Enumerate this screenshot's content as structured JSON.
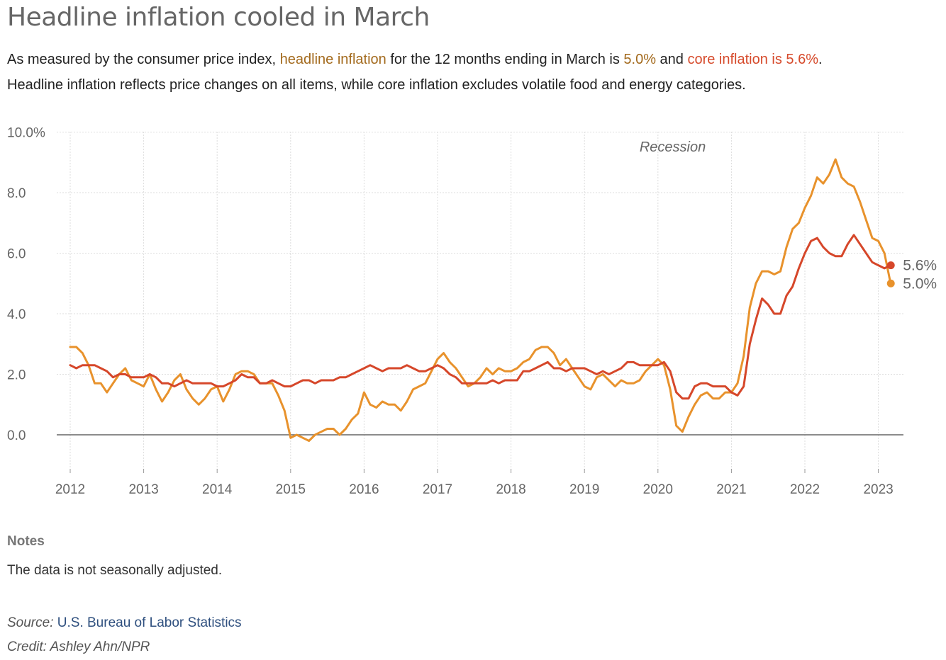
{
  "page": {
    "title": "Headline inflation cooled in March",
    "subtitle": {
      "part1": "As measured by the consumer price index, ",
      "headline_link": "headline inflation",
      "part2": " for the 12 months ending in March is ",
      "headline_value": "5.0%",
      "part3": " and ",
      "core_link": "core inflation is 5.6%",
      "part4": ".",
      "line2": "Headline inflation reflects price changes on all items, while core inflation excludes volatile food and energy categories."
    },
    "notes_heading": "Notes",
    "notes_text": "The data is not seasonally adjusted.",
    "source_label": "Source:",
    "source_link": "U.S. Bureau of Labor Statistics",
    "credit": "Credit: Ashley Ahn/NPR"
  },
  "colors": {
    "headline": "#e8922c",
    "core": "#d6472a",
    "grid": "#dddddd",
    "zero_line": "#666666",
    "axis_text": "#666666"
  },
  "chart_data": {
    "type": "line",
    "title": "Headline inflation cooled in March",
    "xlabel": "",
    "ylabel": "",
    "ylim": [
      -1,
      10
    ],
    "xlim": [
      2012,
      2023.3
    ],
    "y_ticks": [
      {
        "v": 10,
        "label": "10.0%"
      },
      {
        "v": 8,
        "label": "8.0"
      },
      {
        "v": 6,
        "label": "6.0"
      },
      {
        "v": 4,
        "label": "4.0"
      },
      {
        "v": 2,
        "label": "2.0"
      },
      {
        "v": 0,
        "label": "0.0"
      }
    ],
    "x_ticks": [
      "2012",
      "2013",
      "2014",
      "2015",
      "2016",
      "2017",
      "2018",
      "2019",
      "2020",
      "2021",
      "2022",
      "2023"
    ],
    "grid": true,
    "annotation": {
      "text": "Recession",
      "x": 2020.2,
      "y": 9.5
    },
    "series": [
      {
        "name": "headline inflation",
        "color": "#e8922c",
        "end_label": "5.0%",
        "start_year": 2012,
        "values": [
          2.9,
          2.9,
          2.7,
          2.3,
          1.7,
          1.7,
          1.4,
          1.7,
          2.0,
          2.2,
          1.8,
          1.7,
          1.6,
          2.0,
          1.5,
          1.1,
          1.4,
          1.8,
          2.0,
          1.5,
          1.2,
          1.0,
          1.2,
          1.5,
          1.6,
          1.1,
          1.5,
          2.0,
          2.1,
          2.1,
          2.0,
          1.7,
          1.7,
          1.7,
          1.3,
          0.8,
          -0.1,
          0.0,
          -0.1,
          -0.2,
          0.0,
          0.1,
          0.2,
          0.2,
          0.0,
          0.2,
          0.5,
          0.7,
          1.4,
          1.0,
          0.9,
          1.1,
          1.0,
          1.0,
          0.8,
          1.1,
          1.5,
          1.6,
          1.7,
          2.1,
          2.5,
          2.7,
          2.4,
          2.2,
          1.9,
          1.6,
          1.7,
          1.9,
          2.2,
          2.0,
          2.2,
          2.1,
          2.1,
          2.2,
          2.4,
          2.5,
          2.8,
          2.9,
          2.9,
          2.7,
          2.3,
          2.5,
          2.2,
          1.9,
          1.6,
          1.5,
          1.9,
          2.0,
          1.8,
          1.6,
          1.8,
          1.7,
          1.7,
          1.8,
          2.1,
          2.3,
          2.5,
          2.3,
          1.5,
          0.3,
          0.1,
          0.6,
          1.0,
          1.3,
          1.4,
          1.2,
          1.2,
          1.4,
          1.4,
          1.7,
          2.6,
          4.2,
          5.0,
          5.4,
          5.4,
          5.3,
          5.4,
          6.2,
          6.8,
          7.0,
          7.5,
          7.9,
          8.5,
          8.3,
          8.6,
          9.1,
          8.5,
          8.3,
          8.2,
          7.7,
          7.1,
          6.5,
          6.4,
          6.0,
          5.0
        ],
        "last_point": {
          "x": 2023.17,
          "y": 5.0
        }
      },
      {
        "name": "core inflation",
        "color": "#d6472a",
        "end_label": "5.6%",
        "start_year": 2012,
        "values": [
          2.3,
          2.2,
          2.3,
          2.3,
          2.3,
          2.2,
          2.1,
          1.9,
          2.0,
          2.0,
          1.9,
          1.9,
          1.9,
          2.0,
          1.9,
          1.7,
          1.7,
          1.6,
          1.7,
          1.8,
          1.7,
          1.7,
          1.7,
          1.7,
          1.6,
          1.6,
          1.7,
          1.8,
          2.0,
          1.9,
          1.9,
          1.7,
          1.7,
          1.8,
          1.7,
          1.6,
          1.6,
          1.7,
          1.8,
          1.8,
          1.7,
          1.8,
          1.8,
          1.8,
          1.9,
          1.9,
          2.0,
          2.1,
          2.2,
          2.3,
          2.2,
          2.1,
          2.2,
          2.2,
          2.2,
          2.3,
          2.2,
          2.1,
          2.1,
          2.2,
          2.3,
          2.2,
          2.0,
          1.9,
          1.7,
          1.7,
          1.7,
          1.7,
          1.7,
          1.8,
          1.7,
          1.8,
          1.8,
          1.8,
          2.1,
          2.1,
          2.2,
          2.3,
          2.4,
          2.2,
          2.2,
          2.1,
          2.2,
          2.2,
          2.2,
          2.1,
          2.0,
          2.1,
          2.0,
          2.1,
          2.2,
          2.4,
          2.4,
          2.3,
          2.3,
          2.3,
          2.3,
          2.4,
          2.1,
          1.4,
          1.2,
          1.2,
          1.6,
          1.7,
          1.7,
          1.6,
          1.6,
          1.6,
          1.4,
          1.3,
          1.6,
          3.0,
          3.8,
          4.5,
          4.3,
          4.0,
          4.0,
          4.6,
          4.9,
          5.5,
          6.0,
          6.4,
          6.5,
          6.2,
          6.0,
          5.9,
          5.9,
          6.3,
          6.6,
          6.3,
          6.0,
          5.7,
          5.6,
          5.5,
          5.6
        ],
        "last_point": {
          "x": 2023.17,
          "y": 5.6
        }
      }
    ]
  }
}
